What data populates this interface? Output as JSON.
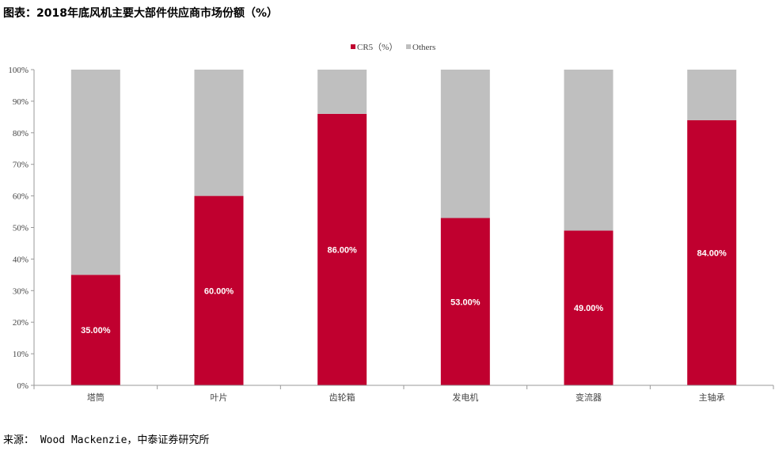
{
  "title": "图表：2018年底风机主要大部件供应商市场份额（%）",
  "source": "来源： Wood Mackenzie，中泰证券研究所",
  "chart_data": {
    "type": "bar",
    "stacked": true,
    "categories": [
      "塔筒",
      "叶片",
      "齿轮箱",
      "发电机",
      "变流器",
      "主轴承"
    ],
    "series": [
      {
        "name": "CR5（%）",
        "values": [
          35,
          60,
          86,
          53,
          49,
          84
        ],
        "color": "#c0002f"
      },
      {
        "name": "Others",
        "values": [
          65,
          40,
          14,
          47,
          51,
          16
        ],
        "color": "#bfbfbf"
      }
    ],
    "data_labels": [
      "35.00%",
      "60.00%",
      "86.00%",
      "53.00%",
      "49.00%",
      "84.00%"
    ],
    "yticks": [
      "0%",
      "10%",
      "20%",
      "30%",
      "40%",
      "50%",
      "60%",
      "70%",
      "80%",
      "90%",
      "100%"
    ],
    "ylim": [
      0,
      100
    ],
    "legend_position": "top-center",
    "grid": false
  }
}
